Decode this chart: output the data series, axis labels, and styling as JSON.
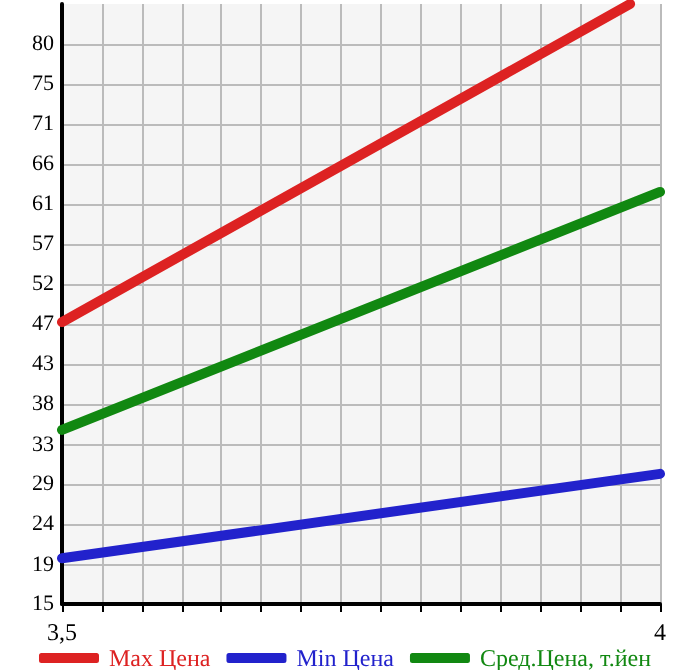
{
  "chart_data": {
    "type": "line",
    "xlim": [
      3.5,
      4
    ],
    "ylim": [
      15,
      84.6
    ],
    "xticks": [
      {
        "value": 3.5,
        "label": "3,5"
      },
      {
        "value": 3.5333,
        "label": null
      },
      {
        "value": 3.5667,
        "label": null
      },
      {
        "value": 3.6,
        "label": null
      },
      {
        "value": 3.6333,
        "label": null
      },
      {
        "value": 3.6667,
        "label": null
      },
      {
        "value": 3.7,
        "label": null
      },
      {
        "value": 3.7333,
        "label": null
      },
      {
        "value": 3.7667,
        "label": null
      },
      {
        "value": 3.8,
        "label": null
      },
      {
        "value": 3.8333,
        "label": null
      },
      {
        "value": 3.8667,
        "label": null
      },
      {
        "value": 3.9,
        "label": null
      },
      {
        "value": 3.9333,
        "label": null
      },
      {
        "value": 3.9667,
        "label": null
      },
      {
        "value": 4,
        "label": "4"
      }
    ],
    "yticks": [
      15,
      {
        "value": 19.5,
        "label": "19"
      },
      {
        "value": 24.29,
        "label": "24"
      },
      {
        "value": 28.93,
        "label": "29"
      },
      {
        "value": 33.5,
        "label": "33"
      },
      {
        "value": 38.21,
        "label": "38"
      },
      {
        "value": 42.86,
        "label": "43"
      },
      {
        "value": 47.5,
        "label": "47"
      },
      {
        "value": 52.14,
        "label": "52"
      },
      {
        "value": 56.79,
        "label": "57"
      },
      {
        "value": 61.43,
        "label": "61"
      },
      {
        "value": 66.07,
        "label": "66"
      },
      {
        "value": 70.71,
        "label": "71"
      },
      {
        "value": 75.36,
        "label": "75"
      },
      80
    ],
    "grid": true,
    "legend": "bottom",
    "marker": "none",
    "line_style": "solid",
    "series": [
      {
        "name": "Max Цена",
        "color": "#dd2222",
        "x": [
          3.5,
          3.975
        ],
        "values": [
          47.7,
          84.6
        ]
      },
      {
        "name": "Min Цена",
        "color": "#2222cc",
        "x": [
          3.5,
          4
        ],
        "values": [
          20.3,
          30.1
        ]
      },
      {
        "name": "Сред.Цена, т.йен",
        "color": "#118811",
        "x": [
          3.5,
          4
        ],
        "values": [
          35.2,
          62.8
        ]
      }
    ]
  }
}
